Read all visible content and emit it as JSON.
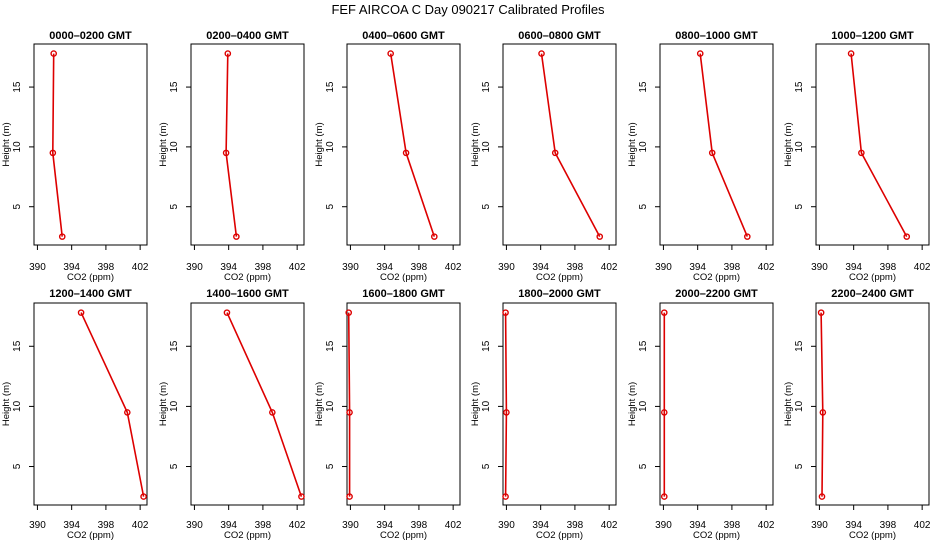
{
  "title": "FEF AIRCOA C  Day 090217  Calibrated Profiles",
  "colors": {
    "line": "#dd0000",
    "axis": "#000000"
  },
  "chart_data": [
    {
      "type": "line",
      "title": "0000–0200 GMT",
      "xlabel": "CO2 (ppm)",
      "ylabel": "Height (m)",
      "xlim": [
        389.6,
        402.8
      ],
      "ylim": [
        1.8,
        18.6
      ],
      "xticks": [
        390,
        394,
        398,
        402
      ],
      "yticks": [
        5,
        10,
        15
      ],
      "grid": false,
      "series": [
        {
          "x": [
            392.9,
            391.8,
            391.9
          ],
          "y": [
            2.5,
            9.5,
            17.8
          ]
        }
      ]
    },
    {
      "type": "line",
      "title": "0200–0400 GMT",
      "xlabel": "CO2 (ppm)",
      "ylabel": "Height (m)",
      "xlim": [
        389.6,
        402.8
      ],
      "ylim": [
        1.8,
        18.6
      ],
      "xticks": [
        390,
        394,
        398,
        402
      ],
      "yticks": [
        5,
        10,
        15
      ],
      "grid": false,
      "series": [
        {
          "x": [
            394.9,
            393.7,
            393.9
          ],
          "y": [
            2.5,
            9.5,
            17.8
          ]
        }
      ]
    },
    {
      "type": "line",
      "title": "0400–0600 GMT",
      "xlabel": "CO2 (ppm)",
      "ylabel": "Height (m)",
      "xlim": [
        389.6,
        402.8
      ],
      "ylim": [
        1.8,
        18.6
      ],
      "xticks": [
        390,
        394,
        398,
        402
      ],
      "yticks": [
        5,
        10,
        15
      ],
      "grid": false,
      "series": [
        {
          "x": [
            399.8,
            396.5,
            394.7
          ],
          "y": [
            2.5,
            9.5,
            17.8
          ]
        }
      ]
    },
    {
      "type": "line",
      "title": "0600–0800 GMT",
      "xlabel": "CO2 (ppm)",
      "ylabel": "Height (m)",
      "xlim": [
        389.6,
        402.8
      ],
      "ylim": [
        1.8,
        18.6
      ],
      "xticks": [
        390,
        394,
        398,
        402
      ],
      "yticks": [
        5,
        10,
        15
      ],
      "grid": false,
      "series": [
        {
          "x": [
            400.9,
            395.7,
            394.1
          ],
          "y": [
            2.5,
            9.5,
            17.8
          ]
        }
      ]
    },
    {
      "type": "line",
      "title": "0800–1000 GMT",
      "xlabel": "CO2 (ppm)",
      "ylabel": "Height (m)",
      "xlim": [
        389.6,
        402.8
      ],
      "ylim": [
        1.8,
        18.6
      ],
      "xticks": [
        390,
        394,
        398,
        402
      ],
      "yticks": [
        5,
        10,
        15
      ],
      "grid": false,
      "series": [
        {
          "x": [
            399.8,
            395.7,
            394.3
          ],
          "y": [
            2.5,
            9.5,
            17.8
          ]
        }
      ]
    },
    {
      "type": "line",
      "title": "1000–1200 GMT",
      "xlabel": "CO2 (ppm)",
      "ylabel": "Height (m)",
      "xlim": [
        389.6,
        402.8
      ],
      "ylim": [
        1.8,
        18.6
      ],
      "xticks": [
        390,
        394,
        398,
        402
      ],
      "yticks": [
        5,
        10,
        15
      ],
      "grid": false,
      "series": [
        {
          "x": [
            400.2,
            394.9,
            393.7
          ],
          "y": [
            2.5,
            9.5,
            17.8
          ]
        }
      ]
    },
    {
      "type": "line",
      "title": "1200–1400 GMT",
      "xlabel": "CO2 (ppm)",
      "ylabel": "Height (m)",
      "xlim": [
        389.6,
        402.8
      ],
      "ylim": [
        1.8,
        18.6
      ],
      "xticks": [
        390,
        394,
        398,
        402
      ],
      "yticks": [
        5,
        10,
        15
      ],
      "grid": false,
      "series": [
        {
          "x": [
            402.4,
            400.5,
            395.1
          ],
          "y": [
            2.5,
            9.5,
            17.8
          ]
        }
      ]
    },
    {
      "type": "line",
      "title": "1400–1600 GMT",
      "xlabel": "CO2 (ppm)",
      "ylabel": "Height (m)",
      "xlim": [
        389.6,
        402.8
      ],
      "ylim": [
        1.8,
        18.6
      ],
      "xticks": [
        390,
        394,
        398,
        402
      ],
      "yticks": [
        5,
        10,
        15
      ],
      "grid": false,
      "series": [
        {
          "x": [
            402.5,
            399.1,
            393.8
          ],
          "y": [
            2.5,
            9.5,
            17.8
          ]
        }
      ]
    },
    {
      "type": "line",
      "title": "1600–1800 GMT",
      "xlabel": "CO2 (ppm)",
      "ylabel": "Height (m)",
      "xlim": [
        389.6,
        402.8
      ],
      "ylim": [
        1.8,
        18.6
      ],
      "xticks": [
        390,
        394,
        398,
        402
      ],
      "yticks": [
        5,
        10,
        15
      ],
      "grid": false,
      "series": [
        {
          "x": [
            389.9,
            389.9,
            389.8
          ],
          "y": [
            2.5,
            9.5,
            17.8
          ]
        }
      ]
    },
    {
      "type": "line",
      "title": "1800–2000 GMT",
      "xlabel": "CO2 (ppm)",
      "ylabel": "Height (m)",
      "xlim": [
        389.6,
        402.8
      ],
      "ylim": [
        1.8,
        18.6
      ],
      "xticks": [
        390,
        394,
        398,
        402
      ],
      "yticks": [
        5,
        10,
        15
      ],
      "grid": false,
      "series": [
        {
          "x": [
            389.9,
            390.0,
            389.9
          ],
          "y": [
            2.5,
            9.5,
            17.8
          ]
        }
      ]
    },
    {
      "type": "line",
      "title": "2000–2200 GMT",
      "xlabel": "CO2 (ppm)",
      "ylabel": "Height (m)",
      "xlim": [
        389.6,
        402.8
      ],
      "ylim": [
        1.8,
        18.6
      ],
      "xticks": [
        390,
        394,
        398,
        402
      ],
      "yticks": [
        5,
        10,
        15
      ],
      "grid": false,
      "series": [
        {
          "x": [
            390.1,
            390.1,
            390.1
          ],
          "y": [
            2.5,
            9.5,
            17.8
          ]
        }
      ]
    },
    {
      "type": "line",
      "title": "2200–2400 GMT",
      "xlabel": "CO2 (ppm)",
      "ylabel": "Height (m)",
      "xlim": [
        389.6,
        402.8
      ],
      "ylim": [
        1.8,
        18.6
      ],
      "xticks": [
        390,
        394,
        398,
        402
      ],
      "yticks": [
        5,
        10,
        15
      ],
      "grid": false,
      "series": [
        {
          "x": [
            390.3,
            390.4,
            390.2
          ],
          "y": [
            2.5,
            9.5,
            17.8
          ]
        }
      ]
    }
  ]
}
